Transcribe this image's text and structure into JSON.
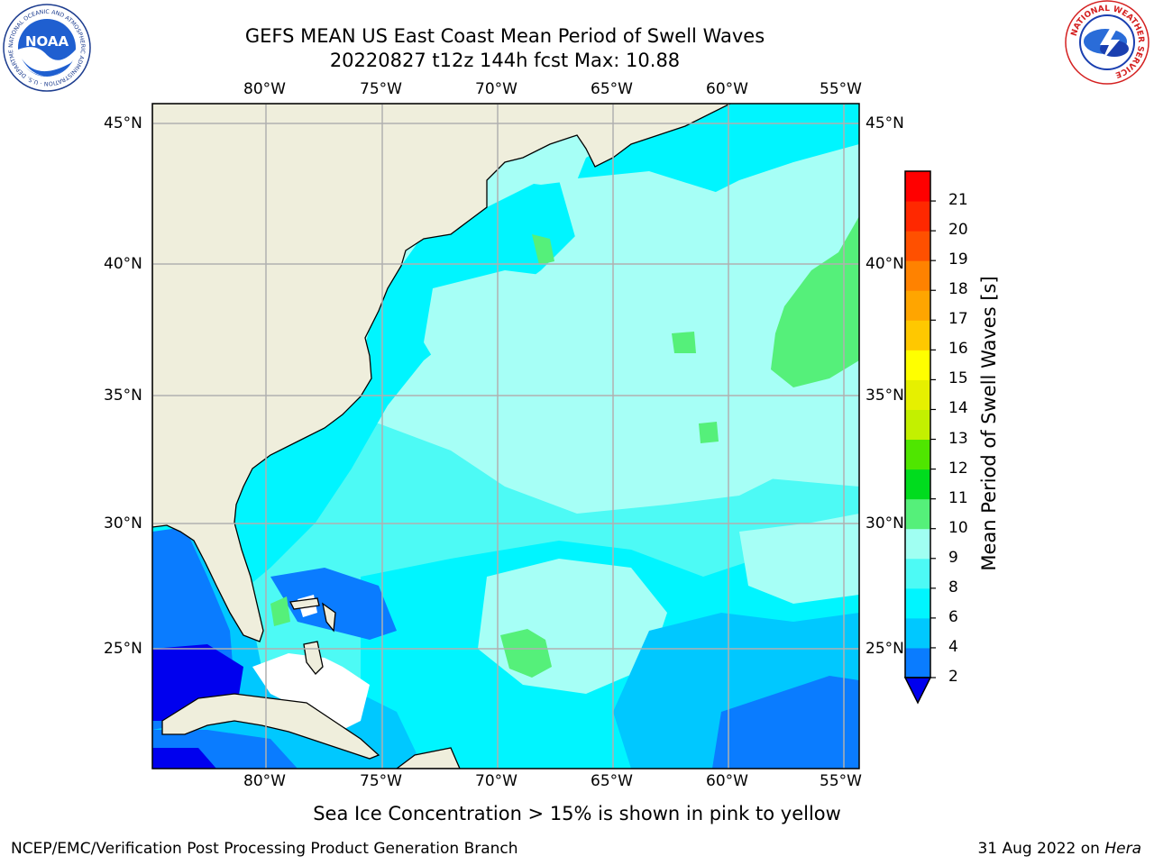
{
  "header": {
    "title_line1": "GEFS MEAN US East Coast Mean Period of Swell Waves",
    "title_line2": "20220827 t12z 144h fcst   Max: 10.88"
  },
  "map": {
    "longitude_labels": [
      "80°W",
      "75°W",
      "70°W",
      "65°W",
      "60°W",
      "55°W"
    ],
    "latitude_labels": [
      "45°N",
      "40°N",
      "35°N",
      "30°N",
      "25°N"
    ],
    "colors": {
      "land": "#efeedc",
      "coast": "#000000",
      "grid": "#b0b0b0",
      "blank_sea": "#ffffff"
    }
  },
  "colorbar": {
    "title": "Mean Period of Swell Waves [s]",
    "tick_labels": [
      "2",
      "4",
      "6",
      "8",
      "9",
      "10",
      "11",
      "12",
      "13",
      "14",
      "15",
      "16",
      "17",
      "18",
      "19",
      "20",
      "21"
    ],
    "levels": [
      {
        "lo": 2,
        "hi": 4,
        "color": "#0a7cff"
      },
      {
        "lo": 4,
        "hi": 6,
        "color": "#00c8ff"
      },
      {
        "lo": 6,
        "hi": 8,
        "color": "#00f5ff"
      },
      {
        "lo": 8,
        "hi": 9,
        "color": "#4dfaf5"
      },
      {
        "lo": 9,
        "hi": 10,
        "color": "#a0fff2"
      },
      {
        "lo": 10,
        "hi": 11,
        "color": "#55f07a"
      },
      {
        "lo": 11,
        "hi": 12,
        "color": "#00dc1e"
      },
      {
        "lo": 12,
        "hi": 13,
        "color": "#4fe600"
      },
      {
        "lo": 13,
        "hi": 14,
        "color": "#c3f000"
      },
      {
        "lo": 14,
        "hi": 15,
        "color": "#e6f000"
      },
      {
        "lo": 15,
        "hi": 16,
        "color": "#ffff00"
      },
      {
        "lo": 16,
        "hi": 17,
        "color": "#ffc800"
      },
      {
        "lo": 17,
        "hi": 18,
        "color": "#ffa500"
      },
      {
        "lo": 18,
        "hi": 19,
        "color": "#ff8200"
      },
      {
        "lo": 19,
        "hi": 20,
        "color": "#ff5000"
      },
      {
        "lo": 20,
        "hi": 21,
        "color": "#ff2800"
      },
      {
        "lo": 21,
        "hi": 22,
        "color": "#ff0000"
      }
    ],
    "under_color": "#0000ee"
  },
  "caption": "Sea Ice Concentration > 15% is shown in pink to yellow",
  "footer": {
    "left": "NCEP/EMC/Verification Post Processing Product Generation Branch",
    "right_date": "31 Aug 2022 on",
    "right_host": "Hera"
  },
  "logos": {
    "noaa_text": "NOAA",
    "noaa_ring_text": "NATIONAL OCEANIC AND ATMOSPHERIC ADMINISTRATION · U.S. DEPARTMENT OF COMMERCE",
    "nws_ring_text": "NATIONAL WEATHER SERVICE"
  }
}
